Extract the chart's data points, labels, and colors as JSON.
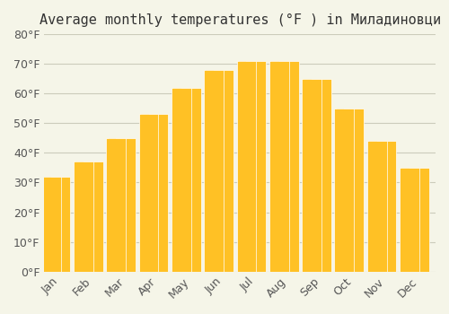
{
  "title": "Average monthly temperatures (°F ) in Миладиновци",
  "months": [
    "Jan",
    "Feb",
    "Mar",
    "Apr",
    "May",
    "Jun",
    "Jul",
    "Aug",
    "Sep",
    "Oct",
    "Nov",
    "Dec"
  ],
  "values": [
    32,
    37,
    45,
    53,
    62,
    68,
    71,
    71,
    65,
    55,
    44,
    35
  ],
  "bar_color_top": "#FFC125",
  "bar_color_bottom": "#FFD966",
  "ylim": [
    0,
    80
  ],
  "yticks": [
    0,
    10,
    20,
    30,
    40,
    50,
    60,
    70,
    80
  ],
  "background_color": "#f5f5e8",
  "grid_color": "#ccccbb",
  "title_fontsize": 11,
  "tick_fontsize": 9
}
